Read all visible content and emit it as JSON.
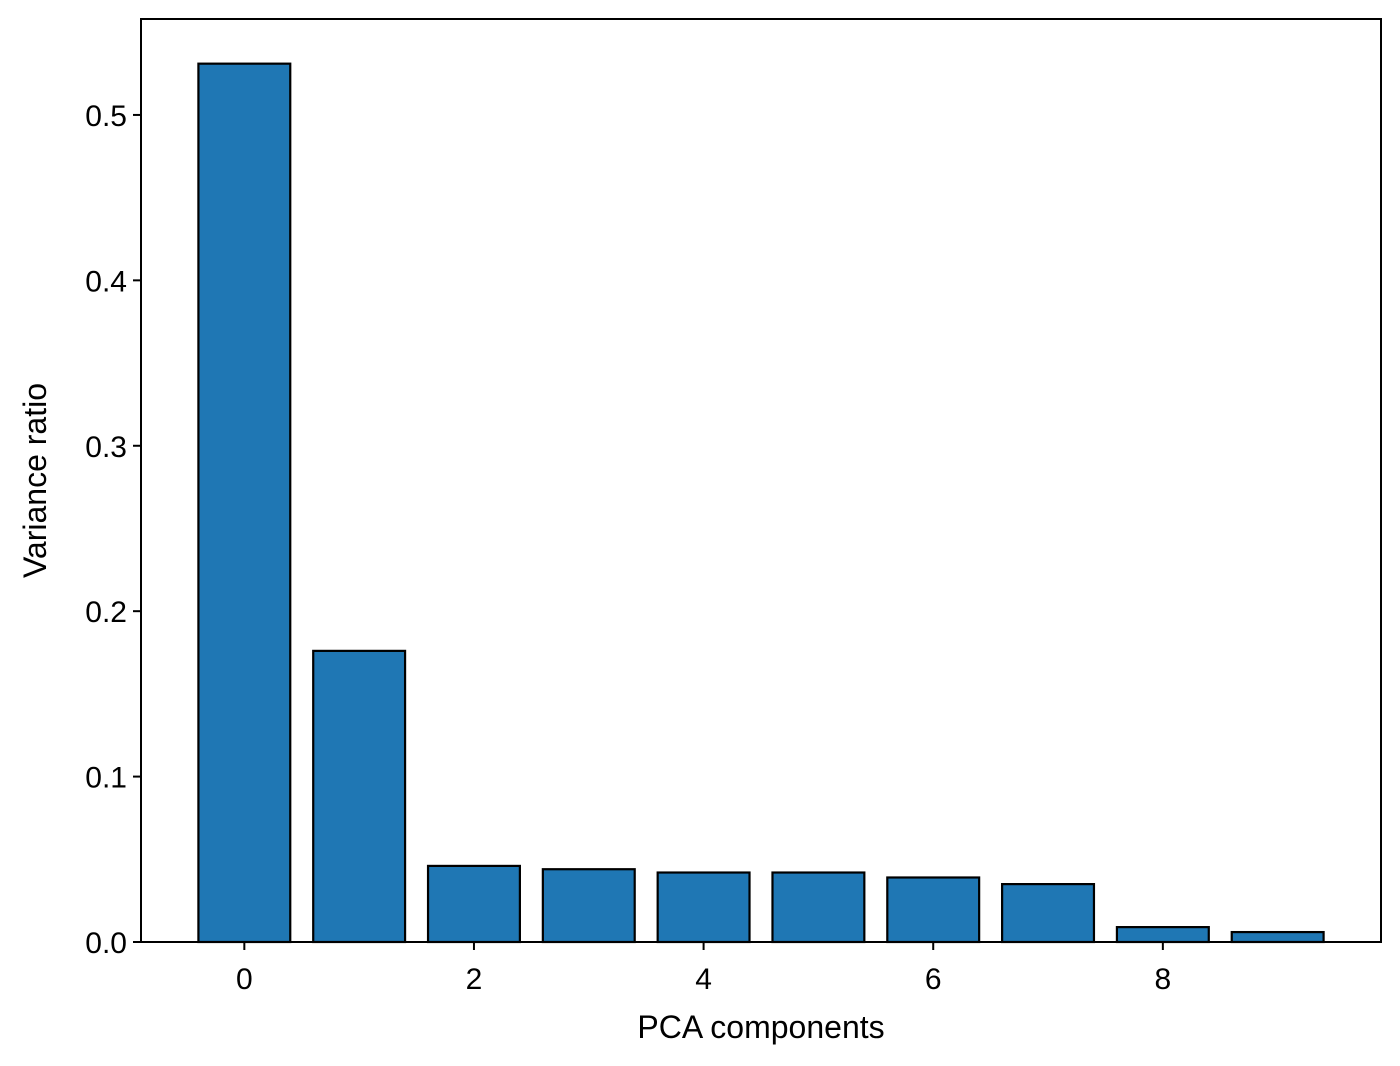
{
  "chart_data": {
    "type": "bar",
    "title": "",
    "xlabel": "PCA components",
    "ylabel": "Variance ratio",
    "categories": [
      0,
      1,
      2,
      3,
      4,
      5,
      6,
      7,
      8,
      9
    ],
    "values": [
      0.531,
      0.176,
      0.046,
      0.044,
      0.042,
      0.042,
      0.039,
      0.035,
      0.009,
      0.006
    ],
    "xlim": [
      -0.9,
      9.9
    ],
    "ylim": [
      0,
      0.558
    ],
    "xticks": [
      0,
      2,
      4,
      6,
      8
    ],
    "xtick_labels": [
      "0",
      "2",
      "4",
      "6",
      "8"
    ],
    "yticks": [
      0.0,
      0.1,
      0.2,
      0.3,
      0.4,
      0.5
    ],
    "ytick_labels": [
      "0.0",
      "0.1",
      "0.2",
      "0.3",
      "0.4",
      "0.5"
    ],
    "bar_width": 0.8,
    "bar_color": "#1f77b4",
    "edge_color": "#000000",
    "grid": false,
    "legend": null
  }
}
